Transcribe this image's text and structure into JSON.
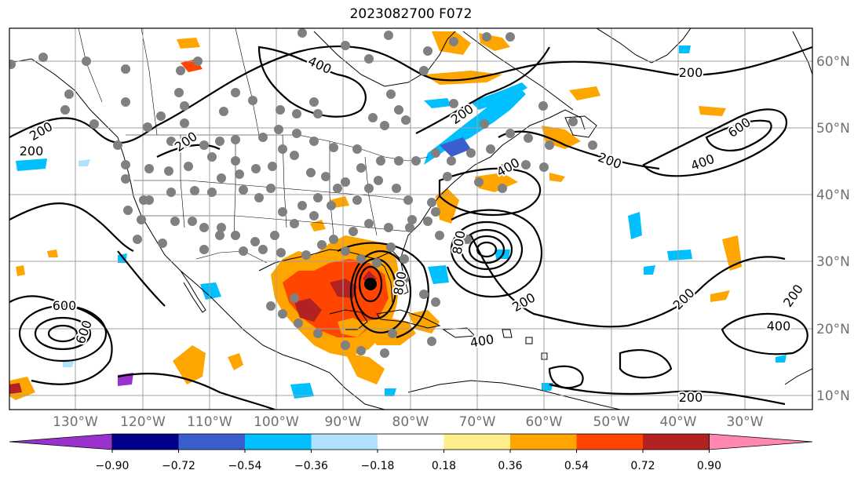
{
  "title": "2023082700 F072",
  "map": {
    "lon_labels": [
      "130°W",
      "120°W",
      "110°W",
      "100°W",
      "90°W",
      "80°W",
      "70°W",
      "60°W",
      "50°W",
      "40°W",
      "30°W"
    ],
    "lat_labels": [
      "60°N",
      "50°N",
      "40°N",
      "30°N",
      "20°N",
      "10°N"
    ],
    "contour_labels": [
      "200",
      "200",
      "200",
      "200",
      "200",
      "200",
      "200",
      "200",
      "200",
      "200",
      "400",
      "400",
      "400",
      "400",
      "400",
      "600",
      "600",
      "600",
      "800",
      "800"
    ],
    "colors": {
      "land_outline": "#000000",
      "grid": "#a0a0a0",
      "station_dot": "#808080",
      "storm_center": "#000000"
    }
  },
  "colorbar": {
    "ticks": [
      "−0.90",
      "−0.72",
      "−0.54",
      "−0.36",
      "−0.18",
      "0.18",
      "0.36",
      "0.54",
      "0.72",
      "0.90"
    ],
    "colors": [
      "#9932cc",
      "#00008b",
      "#3a5fcd",
      "#00bfff",
      "#b0e2ff",
      "#ffffff",
      "#ffec8b",
      "#ffa500",
      "#ff4500",
      "#b22222",
      "#ff88b0"
    ]
  }
}
